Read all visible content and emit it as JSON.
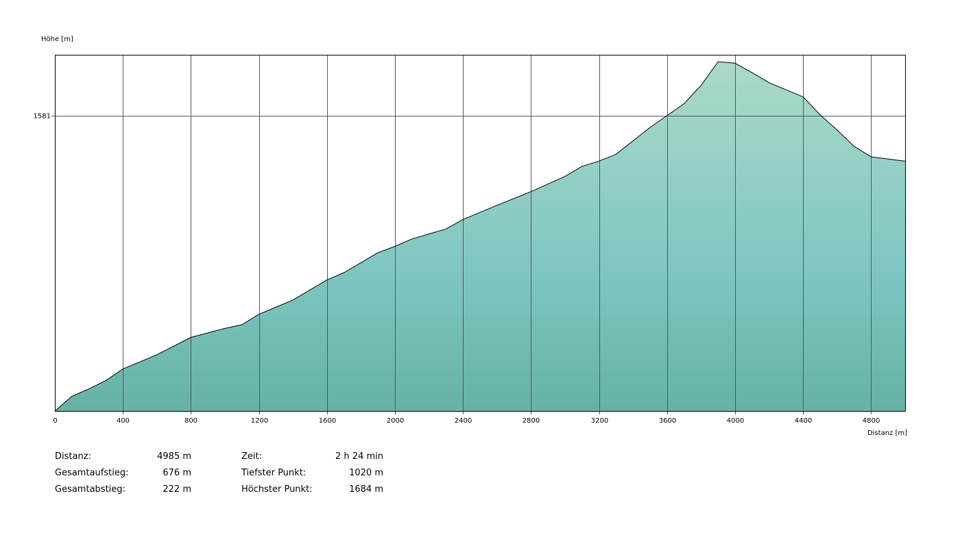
{
  "chart_data": {
    "type": "area",
    "ylabel": "Höhe [m]",
    "xlabel": "Distanz [m]",
    "xlim": [
      0,
      5000
    ],
    "ylim": [
      1020,
      1697
    ],
    "x_ticks": [
      0,
      400,
      800,
      1200,
      1600,
      2000,
      2400,
      2800,
      3200,
      3600,
      4000,
      4400,
      4800
    ],
    "y_ticks": [
      1581
    ],
    "grid": true,
    "colors": {
      "fill_top": "#aad9c8",
      "fill_mid": "#7fc6c3",
      "fill_bottom": "#66b2a4",
      "line": "#000000",
      "grid": "#555555"
    },
    "series": [
      {
        "x": [
          0,
          100,
          200,
          300,
          400,
          600,
          800,
          1000,
          1100,
          1200,
          1400,
          1600,
          1700,
          1800,
          1900,
          2000,
          2100,
          2300,
          2400,
          2600,
          2800,
          3000,
          3100,
          3200,
          3300,
          3500,
          3700,
          3800,
          3900,
          4000,
          4100,
          4200,
          4400,
          4500,
          4600,
          4700,
          4800,
          4900,
          5000
        ],
        "y": [
          1020,
          1048,
          1062,
          1078,
          1100,
          1127,
          1160,
          1177,
          1184,
          1204,
          1231,
          1269,
          1283,
          1302,
          1321,
          1333,
          1347,
          1366,
          1384,
          1411,
          1437,
          1466,
          1485,
          1495,
          1508,
          1559,
          1604,
          1639,
          1684,
          1681,
          1663,
          1644,
          1617,
          1583,
          1554,
          1523,
          1503,
          1499,
          1495
        ]
      }
    ]
  },
  "stats": {
    "distance_label": "Distanz:",
    "distance_value": "4985 m",
    "ascent_label": "Gesamtaufstieg:",
    "ascent_value": "676 m",
    "descent_label": "Gesamtabstieg:",
    "descent_value": "222 m",
    "time_label": "Zeit:",
    "time_value": "2 h 24 min",
    "lowest_label": "Tiefster Punkt:",
    "lowest_value": "1020 m",
    "highest_label": "Höchster Punkt:",
    "highest_value": "1684 m"
  }
}
